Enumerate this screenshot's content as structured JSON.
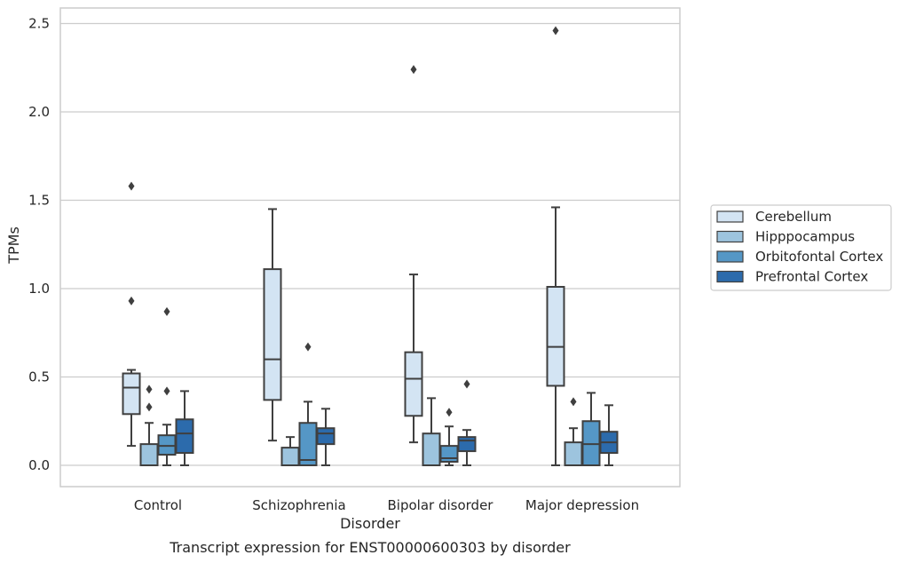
{
  "chart_data": {
    "type": "boxplot",
    "caption": "Transcript expression for ENST00000600303 by disorder",
    "xlabel": "Disorder",
    "ylabel": "TPMs",
    "ylim": [
      -0.12,
      2.59
    ],
    "yticks": [
      "0.0",
      "0.5",
      "1.0",
      "1.5",
      "2.0",
      "2.5"
    ],
    "categories": [
      "Control",
      "Schizophrenia",
      "Bipolar disorder",
      "Major depression"
    ],
    "grid": "horizontal",
    "legend_position": "right",
    "series": [
      {
        "name": "Cerebellum",
        "color": "#d3e4f3",
        "boxes": [
          {
            "whisker_low": 0.11,
            "q1": 0.29,
            "median": 0.44,
            "q3": 0.52,
            "whisker_high": 0.54,
            "outliers": [
              0.93,
              1.58
            ]
          },
          {
            "whisker_low": 0.14,
            "q1": 0.37,
            "median": 0.6,
            "q3": 1.11,
            "whisker_high": 1.45,
            "outliers": []
          },
          {
            "whisker_low": 0.13,
            "q1": 0.28,
            "median": 0.49,
            "q3": 0.64,
            "whisker_high": 1.08,
            "outliers": [
              2.24
            ]
          },
          {
            "whisker_low": 0.0,
            "q1": 0.45,
            "median": 0.67,
            "q3": 1.01,
            "whisker_high": 1.46,
            "outliers": [
              2.46
            ]
          }
        ]
      },
      {
        "name": "Hipppocampus",
        "color": "#9dc4de",
        "boxes": [
          {
            "whisker_low": 0.0,
            "q1": 0.0,
            "median": 0.0,
            "q3": 0.12,
            "whisker_high": 0.24,
            "outliers": [
              0.33,
              0.43
            ]
          },
          {
            "whisker_low": 0.0,
            "q1": 0.0,
            "median": 0.0,
            "q3": 0.1,
            "whisker_high": 0.16,
            "outliers": []
          },
          {
            "whisker_low": 0.0,
            "q1": 0.0,
            "median": 0.0,
            "q3": 0.18,
            "whisker_high": 0.38,
            "outliers": []
          },
          {
            "whisker_low": 0.0,
            "q1": 0.0,
            "median": 0.0,
            "q3": 0.13,
            "whisker_high": 0.21,
            "outliers": [
              0.36
            ]
          }
        ]
      },
      {
        "name": "Orbitofontal Cortex",
        "color": "#5597c6",
        "boxes": [
          {
            "whisker_low": 0.0,
            "q1": 0.06,
            "median": 0.11,
            "q3": 0.17,
            "whisker_high": 0.23,
            "outliers": [
              0.42,
              0.87
            ]
          },
          {
            "whisker_low": 0.0,
            "q1": 0.0,
            "median": 0.03,
            "q3": 0.24,
            "whisker_high": 0.36,
            "outliers": [
              0.67
            ]
          },
          {
            "whisker_low": 0.0,
            "q1": 0.02,
            "median": 0.04,
            "q3": 0.11,
            "whisker_high": 0.22,
            "outliers": [
              0.3
            ]
          },
          {
            "whisker_low": 0.0,
            "q1": 0.0,
            "median": 0.12,
            "q3": 0.25,
            "whisker_high": 0.41,
            "outliers": []
          }
        ]
      },
      {
        "name": "Prefrontal Cortex",
        "color": "#2c6bac",
        "boxes": [
          {
            "whisker_low": 0.0,
            "q1": 0.07,
            "median": 0.18,
            "q3": 0.26,
            "whisker_high": 0.42,
            "outliers": []
          },
          {
            "whisker_low": 0.0,
            "q1": 0.12,
            "median": 0.18,
            "q3": 0.21,
            "whisker_high": 0.32,
            "outliers": []
          },
          {
            "whisker_low": 0.0,
            "q1": 0.08,
            "median": 0.14,
            "q3": 0.16,
            "whisker_high": 0.2,
            "outliers": [
              0.46
            ]
          },
          {
            "whisker_low": 0.0,
            "q1": 0.07,
            "median": 0.13,
            "q3": 0.19,
            "whisker_high": 0.34,
            "outliers": []
          }
        ]
      }
    ]
  }
}
